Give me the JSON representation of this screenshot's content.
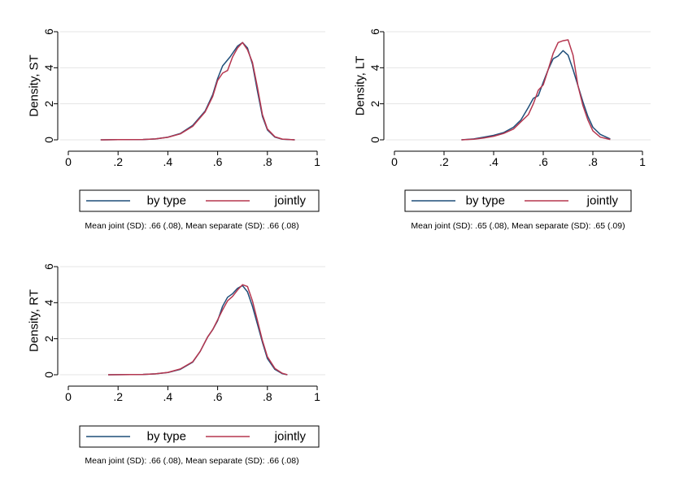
{
  "colors": {
    "by_type": "#1f4e79",
    "jointly": "#b5364f",
    "grid": "#e4e4e4"
  },
  "chart_data": [
    {
      "type": "line",
      "ylabel": "Density, ST",
      "xlim": [
        0,
        1
      ],
      "ylim": [
        0,
        6
      ],
      "x_ticks": [
        0,
        0.2,
        0.4,
        0.6,
        0.8,
        1
      ],
      "x_tick_labels": [
        "0",
        ".2",
        ".4",
        ".6",
        ".8",
        "1"
      ],
      "y_ticks": [
        0,
        2,
        4,
        6
      ],
      "y_tick_labels": [
        "0",
        "2",
        "4",
        "6"
      ],
      "legend": [
        "by type",
        "jointly"
      ],
      "note": "Mean joint (SD): .66 (.08),  Mean separate (SD): .66 (.08)",
      "series": [
        {
          "name": "by type",
          "color": "#1f4e79",
          "x": [
            0.13,
            0.2,
            0.3,
            0.35,
            0.4,
            0.45,
            0.5,
            0.55,
            0.58,
            0.6,
            0.62,
            0.65,
            0.68,
            0.7,
            0.72,
            0.74,
            0.76,
            0.78,
            0.8,
            0.83,
            0.86,
            0.91
          ],
          "y": [
            0,
            0.01,
            0.02,
            0.05,
            0.15,
            0.35,
            0.8,
            1.6,
            2.5,
            3.4,
            4.1,
            4.6,
            5.2,
            5.4,
            5.1,
            4.2,
            2.7,
            1.3,
            0.55,
            0.15,
            0.03,
            0
          ]
        },
        {
          "name": "jointly",
          "color": "#b5364f",
          "x": [
            0.13,
            0.2,
            0.3,
            0.35,
            0.4,
            0.45,
            0.5,
            0.55,
            0.58,
            0.6,
            0.62,
            0.64,
            0.66,
            0.68,
            0.7,
            0.72,
            0.74,
            0.76,
            0.78,
            0.8,
            0.83,
            0.86,
            0.91
          ],
          "y": [
            0,
            0.01,
            0.02,
            0.05,
            0.14,
            0.33,
            0.75,
            1.55,
            2.4,
            3.3,
            3.7,
            3.85,
            4.6,
            5.1,
            5.4,
            5.0,
            4.3,
            2.9,
            1.4,
            0.6,
            0.17,
            0.04,
            0
          ]
        }
      ]
    },
    {
      "type": "line",
      "ylabel": "Density, LT",
      "xlim": [
        0,
        1
      ],
      "ylim": [
        0,
        6
      ],
      "x_ticks": [
        0,
        0.2,
        0.4,
        0.6,
        0.8,
        1
      ],
      "x_tick_labels": [
        "0",
        ".2",
        ".4",
        ".6",
        ".8",
        "1"
      ],
      "y_ticks": [
        0,
        2,
        4,
        6
      ],
      "y_tick_labels": [
        "0",
        "2",
        "4",
        "6"
      ],
      "legend": [
        "by type",
        "jointly"
      ],
      "note": "Mean joint (SD): .65 (.08),  Mean separate (SD): .65 (.09)",
      "series": [
        {
          "name": "by type",
          "color": "#1f4e79",
          "x": [
            0.27,
            0.32,
            0.36,
            0.4,
            0.44,
            0.48,
            0.51,
            0.54,
            0.56,
            0.58,
            0.6,
            0.62,
            0.64,
            0.66,
            0.68,
            0.7,
            0.72,
            0.74,
            0.76,
            0.78,
            0.8,
            0.83,
            0.87
          ],
          "y": [
            0,
            0.05,
            0.15,
            0.25,
            0.4,
            0.7,
            1.1,
            1.8,
            2.3,
            2.45,
            3.2,
            3.9,
            4.5,
            4.65,
            4.95,
            4.7,
            3.9,
            3.0,
            2.1,
            1.3,
            0.7,
            0.3,
            0.05
          ]
        },
        {
          "name": "jointly",
          "color": "#b5364f",
          "x": [
            0.27,
            0.32,
            0.36,
            0.4,
            0.44,
            0.48,
            0.51,
            0.54,
            0.56,
            0.58,
            0.6,
            0.62,
            0.64,
            0.66,
            0.68,
            0.7,
            0.72,
            0.74,
            0.76,
            0.78,
            0.8,
            0.83,
            0.87
          ],
          "y": [
            0,
            0.03,
            0.1,
            0.2,
            0.35,
            0.6,
            1.0,
            1.4,
            2.0,
            2.75,
            3.05,
            3.9,
            4.8,
            5.4,
            5.5,
            5.55,
            4.7,
            3.0,
            1.9,
            1.1,
            0.5,
            0.15,
            0.02
          ]
        }
      ]
    },
    {
      "type": "line",
      "ylabel": "Density, RT",
      "xlim": [
        0,
        1
      ],
      "ylim": [
        0,
        6
      ],
      "x_ticks": [
        0,
        0.2,
        0.4,
        0.6,
        0.8,
        1
      ],
      "x_tick_labels": [
        "0",
        ".2",
        ".4",
        ".6",
        ".8",
        "1"
      ],
      "y_ticks": [
        0,
        2,
        4,
        6
      ],
      "y_tick_labels": [
        "0",
        "2",
        "4",
        "6"
      ],
      "legend": [
        "by type",
        "jointly"
      ],
      "note": "Mean joint (SD): .66 (.08),  Mean separate (SD): .66 (.08)",
      "series": [
        {
          "name": "by type",
          "color": "#1f4e79",
          "x": [
            0.16,
            0.25,
            0.3,
            0.35,
            0.4,
            0.45,
            0.5,
            0.53,
            0.56,
            0.58,
            0.6,
            0.62,
            0.64,
            0.66,
            0.68,
            0.7,
            0.72,
            0.74,
            0.76,
            0.78,
            0.8,
            0.83,
            0.86,
            0.88
          ],
          "y": [
            0,
            0.01,
            0.02,
            0.05,
            0.12,
            0.3,
            0.7,
            1.3,
            2.1,
            2.5,
            3.0,
            3.8,
            4.3,
            4.5,
            4.8,
            4.95,
            4.6,
            3.8,
            2.8,
            1.8,
            0.9,
            0.3,
            0.06,
            0
          ]
        },
        {
          "name": "jointly",
          "color": "#b5364f",
          "x": [
            0.16,
            0.25,
            0.3,
            0.35,
            0.4,
            0.45,
            0.5,
            0.53,
            0.56,
            0.58,
            0.6,
            0.62,
            0.64,
            0.66,
            0.68,
            0.7,
            0.72,
            0.74,
            0.76,
            0.78,
            0.8,
            0.83,
            0.86,
            0.88
          ],
          "y": [
            0,
            0.01,
            0.02,
            0.05,
            0.13,
            0.32,
            0.72,
            1.3,
            2.1,
            2.5,
            3.05,
            3.6,
            4.1,
            4.35,
            4.7,
            5.0,
            4.9,
            4.1,
            3.0,
            1.9,
            1.0,
            0.35,
            0.08,
            0
          ]
        }
      ]
    }
  ]
}
